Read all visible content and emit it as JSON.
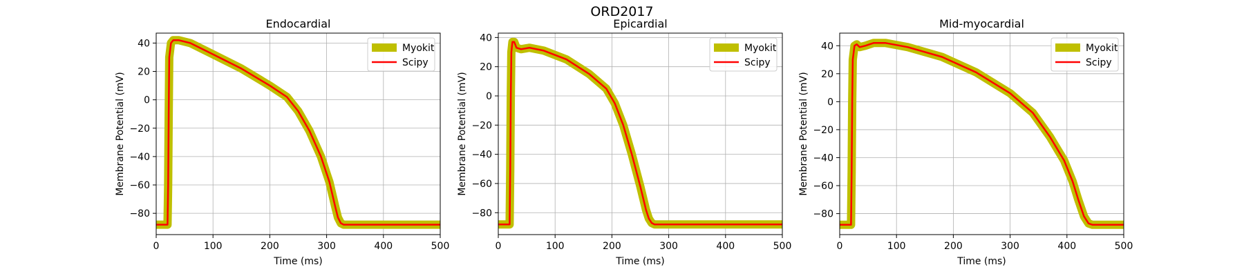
{
  "figure": {
    "suptitle": "ORD2017"
  },
  "colors": {
    "myokit": "#bfbf00",
    "scipy": "#ff0000",
    "grid": "#b0b0b0",
    "axes": "#000000"
  },
  "chart_data": [
    {
      "type": "line",
      "title": "Endocardial",
      "xlabel": "Time (ms)",
      "ylabel": "Membrane Potential (mV)",
      "xlim": [
        0,
        500
      ],
      "ylim": [
        -95,
        47
      ],
      "xticks": [
        0,
        100,
        200,
        300,
        400,
        500
      ],
      "yticks": [
        -80,
        -60,
        -40,
        -20,
        0,
        20,
        40
      ],
      "grid": true,
      "legend": "top-right",
      "series": [
        {
          "name": "Myokit",
          "x": [
            0,
            20,
            21,
            22,
            23,
            26,
            30,
            40,
            60,
            100,
            150,
            200,
            230,
            250,
            270,
            290,
            305,
            315,
            320,
            325,
            330,
            340,
            360,
            400,
            450,
            500
          ],
          "y": [
            -88,
            -88,
            -60,
            -10,
            30,
            40,
            42,
            42,
            40,
            32,
            22,
            10,
            2,
            -8,
            -22,
            -40,
            -58,
            -75,
            -83,
            -87,
            -88,
            -88,
            -88,
            -88,
            -88,
            -88
          ]
        },
        {
          "name": "Scipy",
          "x": [
            0,
            20,
            21,
            22,
            23,
            26,
            30,
            40,
            60,
            100,
            150,
            200,
            230,
            250,
            270,
            290,
            305,
            315,
            320,
            325,
            330,
            340,
            360,
            400,
            450,
            500
          ],
          "y": [
            -88,
            -88,
            -60,
            -10,
            30,
            40,
            42,
            42,
            40,
            32,
            22,
            10,
            2,
            -8,
            -22,
            -40,
            -58,
            -75,
            -83,
            -87,
            -88,
            -88,
            -88,
            -88,
            -88,
            -88
          ]
        }
      ]
    },
    {
      "type": "line",
      "title": "Epicardial",
      "xlabel": "Time (ms)",
      "ylabel": "Membrane Potential (mV)",
      "xlim": [
        0,
        500
      ],
      "ylim": [
        -95,
        43
      ],
      "xticks": [
        0,
        100,
        200,
        300,
        400,
        500
      ],
      "yticks": [
        -80,
        -60,
        -40,
        -20,
        0,
        20,
        40
      ],
      "grid": true,
      "legend": "top-right",
      "series": [
        {
          "name": "Myokit",
          "x": [
            0,
            20,
            21,
            22,
            23,
            25,
            28,
            32,
            40,
            55,
            80,
            120,
            160,
            190,
            205,
            220,
            235,
            250,
            260,
            265,
            270,
            275,
            280,
            300,
            350,
            400,
            500
          ],
          "y": [
            -88,
            -88,
            -50,
            0,
            30,
            37,
            37,
            33,
            32,
            33,
            31,
            25,
            15,
            5,
            -5,
            -20,
            -40,
            -62,
            -78,
            -84,
            -87,
            -88,
            -88,
            -88,
            -88,
            -88,
            -88
          ]
        },
        {
          "name": "Scipy",
          "x": [
            0,
            20,
            21,
            22,
            23,
            25,
            28,
            32,
            40,
            55,
            80,
            120,
            160,
            190,
            205,
            220,
            235,
            250,
            260,
            265,
            270,
            275,
            280,
            300,
            350,
            400,
            500
          ],
          "y": [
            -88,
            -88,
            -50,
            0,
            30,
            37,
            37,
            33,
            32,
            33,
            31,
            25,
            15,
            5,
            -5,
            -20,
            -40,
            -62,
            -78,
            -84,
            -87,
            -88,
            -88,
            -88,
            -88,
            -88,
            -88
          ]
        }
      ]
    },
    {
      "type": "line",
      "title": "Mid-myocardial",
      "xlabel": "Time (ms)",
      "ylabel": "Membrane Potential (mV)",
      "xlim": [
        0,
        500
      ],
      "ylim": [
        -95,
        49
      ],
      "xticks": [
        0,
        100,
        200,
        300,
        400,
        500
      ],
      "yticks": [
        -80,
        -60,
        -40,
        -20,
        0,
        20,
        40
      ],
      "grid": true,
      "legend": "top-right",
      "series": [
        {
          "name": "Myokit",
          "x": [
            0,
            20,
            21,
            22,
            23,
            26,
            30,
            35,
            45,
            60,
            80,
            120,
            180,
            240,
            300,
            340,
            370,
            395,
            410,
            420,
            430,
            438,
            445,
            460,
            500
          ],
          "y": [
            -88,
            -88,
            -50,
            0,
            30,
            40,
            41,
            39,
            40,
            42,
            42,
            39,
            32,
            21,
            6,
            -8,
            -25,
            -42,
            -57,
            -70,
            -82,
            -87,
            -88,
            -88,
            -88
          ]
        },
        {
          "name": "Scipy",
          "x": [
            0,
            20,
            21,
            22,
            23,
            26,
            30,
            35,
            45,
            60,
            80,
            120,
            180,
            240,
            300,
            340,
            370,
            395,
            410,
            420,
            430,
            438,
            445,
            460,
            500
          ],
          "y": [
            -88,
            -88,
            -50,
            0,
            30,
            40,
            41,
            39,
            40,
            42,
            42,
            39,
            32,
            21,
            6,
            -8,
            -25,
            -42,
            -57,
            -70,
            -82,
            -87,
            -88,
            -88,
            -88
          ]
        }
      ]
    }
  ]
}
